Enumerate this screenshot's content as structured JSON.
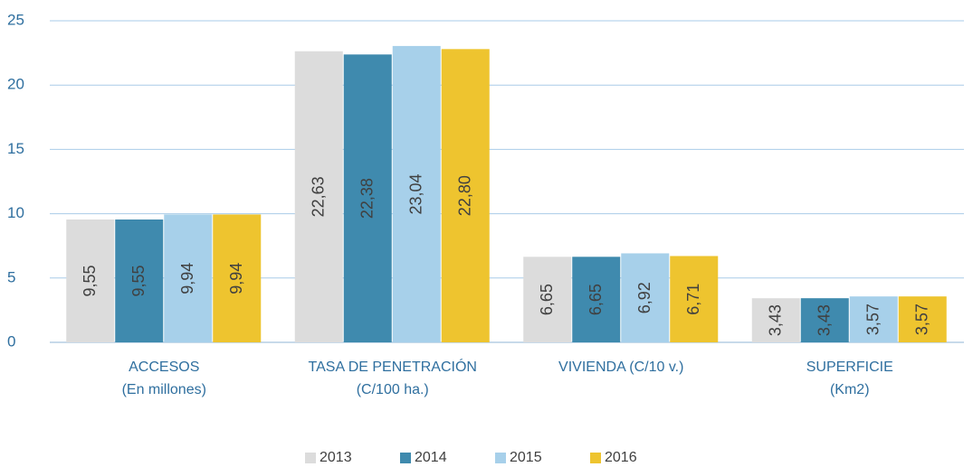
{
  "chart_data": {
    "type": "bar",
    "categories": [
      [
        "ACCESOS",
        "(En millones)"
      ],
      [
        "TASA DE PENETRACIÓN",
        "(C/100 ha.)"
      ],
      [
        "VIVIENDA  (C/10 v.)"
      ],
      [
        "SUPERFICIE",
        "(Km2)"
      ]
    ],
    "series": [
      {
        "name": "2013",
        "color": "#dcdcdc",
        "values": [
          9.55,
          22.63,
          6.65,
          3.43
        ],
        "value_labels": [
          "9,55",
          "22,63",
          "6,65",
          "3,43"
        ]
      },
      {
        "name": "2014",
        "color": "#3f8aae",
        "values": [
          9.55,
          22.38,
          6.65,
          3.43
        ],
        "value_labels": [
          "9,55",
          "22,38",
          "6,65",
          "3,43"
        ]
      },
      {
        "name": "2015",
        "color": "#a7d0ea",
        "values": [
          9.94,
          23.04,
          6.92,
          3.57
        ],
        "value_labels": [
          "9,94",
          "23,04",
          "6,92",
          "3,57"
        ]
      },
      {
        "name": "2016",
        "color": "#eec42f",
        "values": [
          9.94,
          22.8,
          6.71,
          3.57
        ],
        "value_labels": [
          "9,94",
          "22,80",
          "6,71",
          "3,57"
        ]
      }
    ],
    "ylim": [
      0,
      25
    ],
    "yticks": [
      0,
      5,
      10,
      15,
      20,
      25
    ],
    "grid": true,
    "legend": "bottom"
  }
}
